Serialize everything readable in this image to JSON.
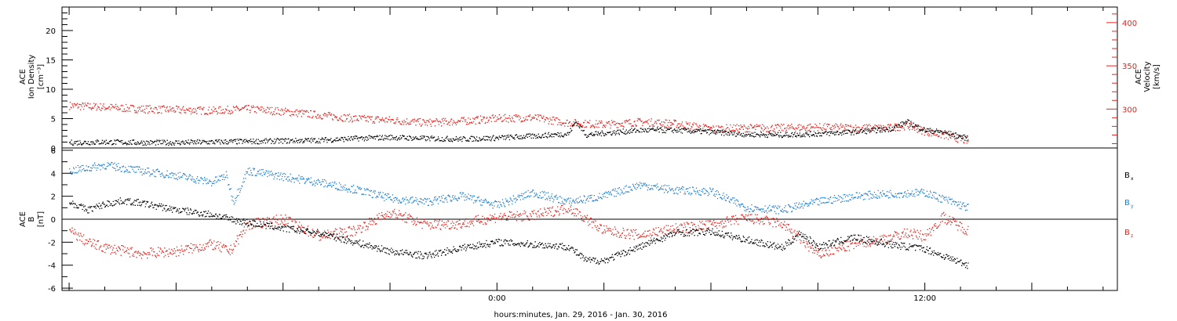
{
  "chart_data": [
    {
      "panel": "top",
      "type": "scatter",
      "xlabel": "hours:minutes, Jan. 29, 2016 - Jan. 30, 2016",
      "x_tick_labels": [
        {
          "hour": 0,
          "label": "0:00"
        },
        {
          "hour": 12,
          "label": "12:00"
        }
      ],
      "xlim": [
        -12.2,
        17.4
      ],
      "left_axis": {
        "title": [
          "ACE",
          "Ion Density",
          "[cm⁻³]"
        ],
        "ylim": [
          0,
          24
        ],
        "ticks": [
          0,
          5,
          10,
          15,
          20
        ],
        "color": "#000000"
      },
      "right_axis": {
        "title": [
          "ACE",
          "Velocity",
          "[km/s]"
        ],
        "ylim": [
          255,
          418
        ],
        "ticks": [
          300,
          350,
          400
        ],
        "color": "#e8221c"
      },
      "series": [
        {
          "axis": "left",
          "color": "#000000",
          "x": [
            -12,
            -11,
            -10,
            -9,
            -8,
            -7,
            -6,
            -5,
            -4,
            -3,
            -2,
            -1,
            0,
            1,
            2,
            2.2,
            2.5,
            3,
            4,
            5,
            6,
            7,
            8,
            9,
            10,
            11,
            11.5,
            12,
            12.5,
            13.2
          ],
          "y": [
            0.9,
            1.0,
            0.9,
            0.9,
            1.0,
            1.1,
            1.2,
            1.3,
            1.6,
            1.8,
            1.6,
            1.5,
            1.7,
            2.0,
            2.4,
            4.5,
            2.2,
            2.5,
            3.0,
            3.0,
            2.7,
            2.3,
            2.2,
            2.4,
            2.7,
            3.2,
            4.4,
            3.0,
            2.7,
            1.6
          ]
        },
        {
          "axis": "right",
          "color": "#e8221c",
          "x": [
            -12,
            -11,
            -10,
            -9,
            -8,
            -7,
            -6,
            -5,
            -4,
            -3,
            -2,
            -1,
            0,
            1,
            2,
            3,
            4,
            5,
            6,
            7,
            8,
            9,
            10,
            11,
            11.5,
            12,
            12.5,
            13.2
          ],
          "y": [
            304,
            302,
            300,
            299,
            298,
            300,
            297,
            293,
            289,
            287,
            284,
            286,
            289,
            290,
            284,
            282,
            285,
            283,
            277,
            278,
            278,
            279,
            278,
            278,
            281,
            274,
            270,
            263
          ]
        }
      ]
    },
    {
      "panel": "bottom",
      "type": "scatter",
      "xlim": [
        -12.2,
        17.4
      ],
      "left_axis": {
        "title": [
          "ACE",
          "B",
          "[nT]"
        ],
        "ylim": [
          -6.2,
          6.2
        ],
        "ticks": [
          -6,
          -4,
          -2,
          0,
          2,
          4,
          6
        ]
      },
      "zero_line": true,
      "series": [
        {
          "name": "Bx",
          "label_main": "B",
          "label_sub": "x",
          "color": "#000000",
          "x": [
            -12,
            -11.5,
            -11,
            -10.5,
            -10,
            -9,
            -8,
            -7.5,
            -7,
            -6,
            -5,
            -4,
            -3,
            -2,
            -1,
            0,
            1,
            2,
            2.5,
            3,
            4,
            5,
            6,
            7,
            8,
            8.5,
            9,
            10,
            11,
            12,
            13.2
          ],
          "y": [
            1.5,
            0.8,
            1.3,
            1.6,
            1.4,
            0.8,
            0.4,
            0.0,
            -0.3,
            -0.8,
            -1.2,
            -2.0,
            -2.8,
            -3.2,
            -2.5,
            -2.0,
            -2.2,
            -2.4,
            -3.6,
            -3.6,
            -2.4,
            -1.2,
            -1.1,
            -1.8,
            -2.5,
            -1.2,
            -2.4,
            -1.6,
            -2.2,
            -2.6,
            -4.0
          ]
        },
        {
          "name": "By",
          "label_main": "B",
          "label_sub": "y",
          "color": "#1e7fd6",
          "x": [
            -12,
            -11,
            -10,
            -9,
            -8,
            -7.6,
            -7.4,
            -7,
            -6,
            -5,
            -4,
            -3,
            -2,
            -1,
            0,
            1,
            2,
            3,
            4,
            5,
            6,
            7,
            8,
            9,
            10,
            11,
            12,
            13.2
          ],
          "y": [
            4.2,
            4.7,
            4.2,
            3.8,
            3.2,
            3.8,
            1.5,
            4.2,
            3.7,
            3.2,
            2.6,
            1.8,
            1.5,
            2.0,
            1.2,
            2.3,
            1.5,
            2.0,
            3.0,
            2.5,
            2.4,
            1.0,
            0.8,
            1.5,
            2.0,
            2.2,
            2.3,
            1.0
          ]
        },
        {
          "name": "Bz",
          "label_main": "B",
          "label_sub": "z",
          "color": "#e8221c",
          "x": [
            -12,
            -11.5,
            -11,
            -10,
            -9,
            -8,
            -7.5,
            -7,
            -6,
            -5,
            -4,
            -3,
            -2,
            -1,
            0,
            1,
            2,
            3,
            4,
            5,
            6,
            7,
            8,
            9,
            10,
            11,
            11.5,
            12,
            12.5,
            13.2
          ],
          "y": [
            -1.0,
            -2.0,
            -2.5,
            -3.0,
            -2.8,
            -2.2,
            -2.8,
            -0.5,
            0.0,
            -1.5,
            -1.0,
            0.6,
            -0.5,
            -0.4,
            0.2,
            0.3,
            1.0,
            -1.0,
            -1.4,
            -0.8,
            -0.5,
            0.1,
            -0.4,
            -3.1,
            -2.2,
            -1.6,
            -1.2,
            -1.5,
            0.2,
            -1.0
          ]
        }
      ]
    }
  ]
}
